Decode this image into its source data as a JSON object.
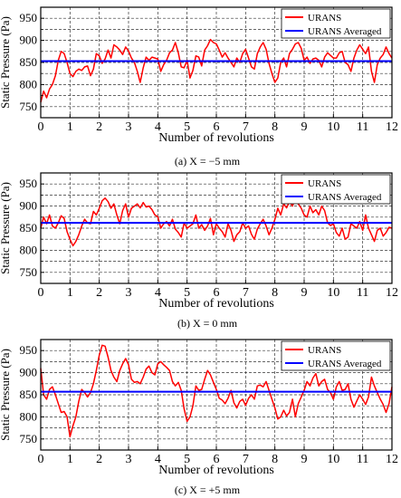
{
  "chart_data": [
    {
      "type": "line",
      "caption": "(a) X = −5 mm",
      "xlabel": "Number of revolutions",
      "ylabel": "Static Pressure (Pa)",
      "xlim": [
        0,
        12
      ],
      "ylim": [
        725,
        975
      ],
      "xticks": [
        0,
        1,
        2,
        3,
        4,
        5,
        6,
        7,
        8,
        9,
        10,
        11,
        12
      ],
      "yticks": [
        750,
        800,
        850,
        900,
        950
      ],
      "grid": true,
      "legend_position": "top-right",
      "series": [
        {
          "name": "URANS",
          "color": "#ff0000",
          "x": [
            0,
            0.1,
            0.2,
            0.3,
            0.4,
            0.5,
            0.6,
            0.7,
            0.8,
            0.9,
            1.0,
            1.1,
            1.2,
            1.3,
            1.4,
            1.5,
            1.6,
            1.7,
            1.8,
            1.9,
            2.0,
            2.1,
            2.2,
            2.3,
            2.4,
            2.5,
            2.6,
            2.7,
            2.8,
            2.9,
            3.0,
            3.1,
            3.2,
            3.3,
            3.4,
            3.5,
            3.6,
            3.7,
            3.8,
            3.9,
            4.0,
            4.1,
            4.2,
            4.3,
            4.4,
            4.5,
            4.6,
            4.7,
            4.8,
            4.9,
            5.0,
            5.1,
            5.2,
            5.3,
            5.4,
            5.5,
            5.6,
            5.7,
            5.8,
            5.9,
            6.0,
            6.1,
            6.2,
            6.3,
            6.4,
            6.5,
            6.6,
            6.7,
            6.8,
            6.9,
            7.0,
            7.1,
            7.2,
            7.3,
            7.4,
            7.5,
            7.6,
            7.7,
            7.8,
            7.9,
            8.0,
            8.1,
            8.2,
            8.3,
            8.4,
            8.5,
            8.6,
            8.7,
            8.8,
            8.9,
            9.0,
            9.1,
            9.2,
            9.3,
            9.4,
            9.5,
            9.6,
            9.7,
            9.8,
            9.9,
            10.0,
            10.1,
            10.2,
            10.3,
            10.4,
            10.5,
            10.6,
            10.7,
            10.8,
            10.9,
            11.0,
            11.1,
            11.2,
            11.3,
            11.4,
            11.5,
            11.6,
            11.7,
            11.8,
            11.9,
            12.0
          ],
          "values": [
            760,
            785,
            770,
            790,
            800,
            820,
            855,
            875,
            870,
            850,
            825,
            818,
            830,
            835,
            832,
            840,
            842,
            820,
            835,
            870,
            865,
            848,
            858,
            878,
            860,
            890,
            885,
            878,
            868,
            885,
            876,
            860,
            850,
            830,
            805,
            838,
            862,
            855,
            862,
            860,
            858,
            830,
            845,
            855,
            872,
            878,
            895,
            872,
            840,
            838,
            855,
            815,
            832,
            865,
            862,
            842,
            878,
            888,
            902,
            895,
            892,
            878,
            862,
            872,
            860,
            850,
            840,
            860,
            850,
            870,
            880,
            860,
            840,
            835,
            870,
            885,
            895,
            880,
            848,
            825,
            805,
            815,
            850,
            860,
            840,
            870,
            880,
            892,
            895,
            882,
            855,
            862,
            848,
            858,
            860,
            855,
            840,
            862,
            872,
            866,
            860,
            860,
            872,
            875,
            850,
            845,
            830,
            860,
            878,
            890,
            880,
            870,
            885,
            830,
            805,
            845,
            860,
            868,
            885,
            870,
            860
          ]
        },
        {
          "name": "URANS Averaged",
          "color": "#0000ff",
          "x": [
            0,
            12
          ],
          "values": [
            853,
            853
          ]
        }
      ]
    },
    {
      "type": "line",
      "caption": "(b) X = 0 mm",
      "xlabel": "Number of revolutions",
      "ylabel": "Static Pressure (Pa)",
      "xlim": [
        0,
        12
      ],
      "ylim": [
        725,
        975
      ],
      "xticks": [
        0,
        1,
        2,
        3,
        4,
        5,
        6,
        7,
        8,
        9,
        10,
        11,
        12
      ],
      "yticks": [
        750,
        800,
        850,
        900,
        950
      ],
      "grid": true,
      "legend_position": "top-right",
      "series": [
        {
          "name": "URANS",
          "color": "#ff0000",
          "x": [
            0,
            0.1,
            0.2,
            0.3,
            0.4,
            0.5,
            0.6,
            0.7,
            0.8,
            0.9,
            1.0,
            1.1,
            1.2,
            1.3,
            1.4,
            1.5,
            1.6,
            1.7,
            1.8,
            1.9,
            2.0,
            2.1,
            2.2,
            2.3,
            2.4,
            2.5,
            2.6,
            2.7,
            2.8,
            2.9,
            3.0,
            3.1,
            3.2,
            3.3,
            3.4,
            3.5,
            3.6,
            3.7,
            3.8,
            3.9,
            4.0,
            4.1,
            4.2,
            4.3,
            4.4,
            4.5,
            4.6,
            4.7,
            4.8,
            4.9,
            5.0,
            5.1,
            5.2,
            5.3,
            5.4,
            5.5,
            5.6,
            5.7,
            5.8,
            5.9,
            6.0,
            6.1,
            6.2,
            6.3,
            6.4,
            6.5,
            6.6,
            6.7,
            6.8,
            6.9,
            7.0,
            7.1,
            7.2,
            7.3,
            7.4,
            7.5,
            7.6,
            7.7,
            7.8,
            7.9,
            8.0,
            8.1,
            8.2,
            8.3,
            8.4,
            8.5,
            8.6,
            8.7,
            8.8,
            8.9,
            9.0,
            9.1,
            9.2,
            9.3,
            9.4,
            9.5,
            9.6,
            9.7,
            9.8,
            9.9,
            10.0,
            10.1,
            10.2,
            10.3,
            10.4,
            10.5,
            10.6,
            10.7,
            10.8,
            10.9,
            11.0,
            11.1,
            11.2,
            11.3,
            11.4,
            11.5,
            11.6,
            11.7,
            11.8,
            11.9,
            12.0
          ],
          "values": [
            850,
            875,
            860,
            880,
            855,
            850,
            862,
            878,
            872,
            842,
            825,
            810,
            820,
            835,
            855,
            870,
            862,
            860,
            888,
            880,
            895,
            912,
            918,
            910,
            895,
            905,
            880,
            860,
            890,
            905,
            875,
            895,
            900,
            905,
            896,
            908,
            898,
            900,
            892,
            880,
            876,
            850,
            860,
            865,
            855,
            870,
            848,
            840,
            830,
            862,
            850,
            855,
            860,
            880,
            850,
            858,
            845,
            855,
            872,
            835,
            860,
            850,
            842,
            830,
            860,
            845,
            820,
            835,
            842,
            862,
            850,
            855,
            836,
            825,
            848,
            860,
            870,
            855,
            835,
            850,
            870,
            895,
            880,
            905,
            896,
            910,
            900,
            918,
            905,
            895,
            880,
            875,
            900,
            885,
            892,
            880,
            900,
            890,
            862,
            856,
            860,
            840,
            832,
            850,
            825,
            830,
            860,
            855,
            850,
            865,
            845,
            880,
            850,
            835,
            820,
            845,
            850,
            832,
            840,
            852,
            850
          ]
        },
        {
          "name": "URANS Averaged",
          "color": "#0000ff",
          "x": [
            0,
            12
          ],
          "values": [
            862,
            862
          ]
        }
      ]
    },
    {
      "type": "line",
      "caption": "(c) X = +5 mm",
      "xlabel": "Number of revolutions",
      "ylabel": "Static Pressure (Pa)",
      "xlim": [
        0,
        12
      ],
      "ylim": [
        725,
        975
      ],
      "xticks": [
        0,
        1,
        2,
        3,
        4,
        5,
        6,
        7,
        8,
        9,
        10,
        11,
        12
      ],
      "yticks": [
        750,
        800,
        850,
        900,
        950
      ],
      "grid": true,
      "legend_position": "top-right",
      "series": [
        {
          "name": "URANS",
          "color": "#ff0000",
          "x": [
            0,
            0.1,
            0.2,
            0.3,
            0.4,
            0.5,
            0.6,
            0.7,
            0.8,
            0.9,
            1.0,
            1.1,
            1.2,
            1.3,
            1.4,
            1.5,
            1.6,
            1.7,
            1.8,
            1.9,
            2.0,
            2.1,
            2.2,
            2.3,
            2.4,
            2.5,
            2.6,
            2.7,
            2.8,
            2.9,
            3.0,
            3.1,
            3.2,
            3.3,
            3.4,
            3.5,
            3.6,
            3.7,
            3.8,
            3.9,
            4.0,
            4.1,
            4.2,
            4.3,
            4.4,
            4.5,
            4.6,
            4.7,
            4.8,
            4.9,
            5.0,
            5.1,
            5.2,
            5.3,
            5.4,
            5.5,
            5.6,
            5.7,
            5.8,
            5.9,
            6.0,
            6.1,
            6.2,
            6.3,
            6.4,
            6.5,
            6.6,
            6.7,
            6.8,
            6.9,
            7.0,
            7.1,
            7.2,
            7.3,
            7.4,
            7.5,
            7.6,
            7.7,
            7.8,
            7.9,
            8.0,
            8.1,
            8.2,
            8.3,
            8.4,
            8.5,
            8.6,
            8.7,
            8.8,
            8.9,
            9.0,
            9.1,
            9.2,
            9.3,
            9.4,
            9.5,
            9.6,
            9.7,
            9.8,
            9.9,
            10.0,
            10.1,
            10.2,
            10.3,
            10.4,
            10.5,
            10.6,
            10.7,
            10.8,
            10.9,
            11.0,
            11.1,
            11.2,
            11.3,
            11.4,
            11.5,
            11.6,
            11.7,
            11.8,
            11.9,
            12.0
          ],
          "values": [
            910,
            850,
            840,
            862,
            868,
            850,
            830,
            810,
            812,
            800,
            755,
            780,
            800,
            835,
            862,
            855,
            845,
            855,
            875,
            905,
            940,
            962,
            960,
            935,
            905,
            890,
            880,
            905,
            920,
            932,
            918,
            885,
            878,
            880,
            875,
            890,
            908,
            915,
            900,
            895,
            920,
            925,
            918,
            912,
            905,
            880,
            870,
            878,
            860,
            818,
            790,
            800,
            825,
            870,
            860,
            862,
            885,
            905,
            895,
            878,
            862,
            842,
            838,
            830,
            842,
            860,
            832,
            820,
            835,
            840,
            826,
            842,
            850,
            840,
            870,
            872,
            868,
            880,
            860,
            840,
            820,
            795,
            800,
            815,
            802,
            810,
            840,
            800,
            830,
            845,
            860,
            880,
            870,
            888,
            898,
            870,
            880,
            885,
            862,
            855,
            840,
            868,
            880,
            860,
            862,
            875,
            840,
            822,
            836,
            850,
            840,
            828,
            845,
            890,
            870,
            855,
            840,
            828,
            810,
            830,
            868
          ]
        },
        {
          "name": "URANS Averaged",
          "color": "#0000ff",
          "x": [
            0,
            12
          ],
          "values": [
            857,
            857
          ]
        }
      ]
    }
  ]
}
